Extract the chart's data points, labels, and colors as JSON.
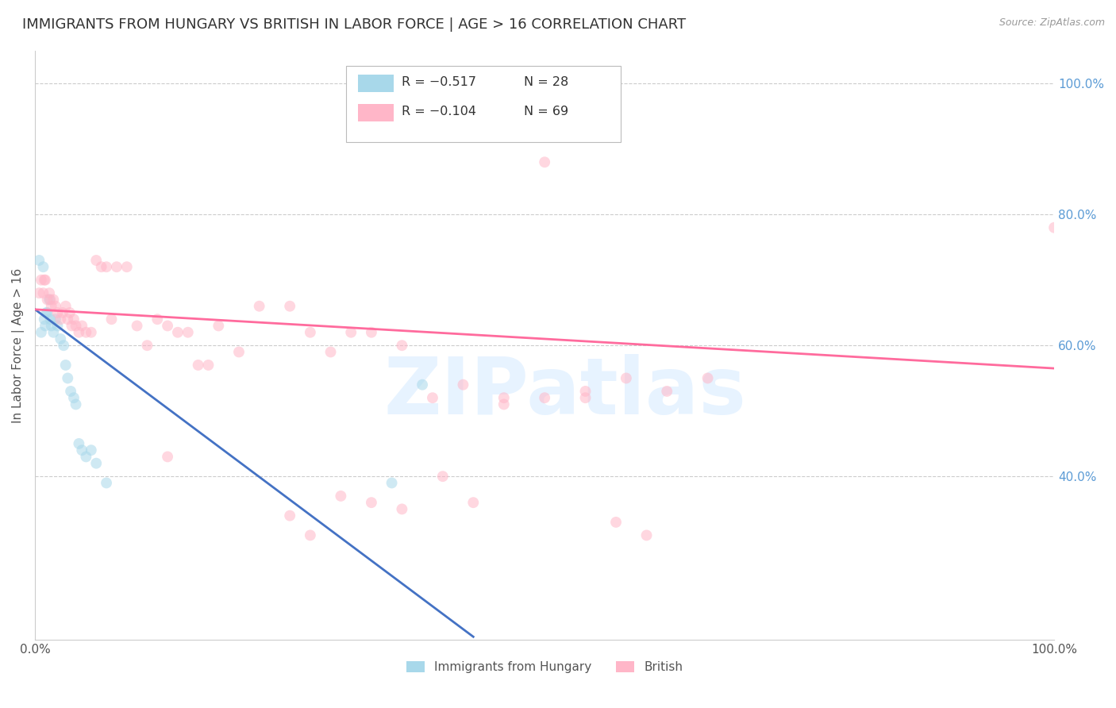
{
  "title": "IMMIGRANTS FROM HUNGARY VS BRITISH IN LABOR FORCE | AGE > 16 CORRELATION CHART",
  "source": "Source: ZipAtlas.com",
  "ylabel": "In Labor Force | Age > 16",
  "xlim": [
    0.0,
    1.0
  ],
  "ylim": [
    0.15,
    1.05
  ],
  "ytick_values": [
    0.4,
    0.6,
    0.8,
    1.0
  ],
  "ytick_labels": [
    "40.0%",
    "60.0%",
    "80.0%",
    "100.0%"
  ],
  "xtick_values": [
    0.0,
    1.0
  ],
  "xtick_labels": [
    "0.0%",
    "100.0%"
  ],
  "watermark": "ZIPatlas",
  "legend_hungary_r": "R = −0.517",
  "legend_hungary_n": "N = 28",
  "legend_british_r": "R = −0.104",
  "legend_british_n": "N = 69",
  "hungary_color": "#A8D8EA",
  "british_color": "#FFB6C8",
  "hungary_line_color": "#4472C4",
  "british_line_color": "#FF6B9D",
  "hungary_scatter_x": [
    0.004,
    0.006,
    0.008,
    0.009,
    0.01,
    0.011,
    0.012,
    0.014,
    0.015,
    0.016,
    0.018,
    0.02,
    0.022,
    0.025,
    0.028,
    0.03,
    0.032,
    0.035,
    0.038,
    0.04,
    0.043,
    0.046,
    0.05,
    0.055,
    0.06,
    0.07,
    0.35,
    0.38
  ],
  "hungary_scatter_y": [
    0.73,
    0.62,
    0.72,
    0.64,
    0.63,
    0.65,
    0.65,
    0.67,
    0.64,
    0.63,
    0.62,
    0.64,
    0.63,
    0.61,
    0.6,
    0.57,
    0.55,
    0.53,
    0.52,
    0.51,
    0.45,
    0.44,
    0.43,
    0.44,
    0.42,
    0.39,
    0.39,
    0.54
  ],
  "british_scatter_x": [
    0.004,
    0.006,
    0.008,
    0.009,
    0.01,
    0.012,
    0.014,
    0.015,
    0.016,
    0.018,
    0.02,
    0.022,
    0.025,
    0.027,
    0.03,
    0.032,
    0.034,
    0.036,
    0.038,
    0.04,
    0.043,
    0.046,
    0.05,
    0.055,
    0.06,
    0.065,
    0.07,
    0.075,
    0.08,
    0.09,
    0.1,
    0.11,
    0.12,
    0.13,
    0.14,
    0.15,
    0.16,
    0.17,
    0.18,
    0.2,
    0.22,
    0.25,
    0.27,
    0.29,
    0.31,
    0.33,
    0.36,
    0.39,
    0.42,
    0.46,
    0.5,
    0.54,
    0.58,
    0.62,
    0.66,
    0.13,
    0.25,
    0.27,
    0.3,
    0.33,
    0.36,
    0.4,
    0.43,
    0.46,
    0.5,
    0.54,
    0.57,
    0.6,
    1.0
  ],
  "british_scatter_y": [
    0.68,
    0.7,
    0.68,
    0.7,
    0.7,
    0.67,
    0.68,
    0.67,
    0.66,
    0.67,
    0.66,
    0.65,
    0.64,
    0.65,
    0.66,
    0.64,
    0.65,
    0.63,
    0.64,
    0.63,
    0.62,
    0.63,
    0.62,
    0.62,
    0.73,
    0.72,
    0.72,
    0.64,
    0.72,
    0.72,
    0.63,
    0.6,
    0.64,
    0.63,
    0.62,
    0.62,
    0.57,
    0.57,
    0.63,
    0.59,
    0.66,
    0.66,
    0.62,
    0.59,
    0.62,
    0.62,
    0.6,
    0.52,
    0.54,
    0.51,
    0.52,
    0.53,
    0.55,
    0.53,
    0.55,
    0.43,
    0.34,
    0.31,
    0.37,
    0.36,
    0.35,
    0.4,
    0.36,
    0.52,
    0.88,
    0.52,
    0.33,
    0.31,
    0.78
  ],
  "hungary_trendline_x": [
    0.0,
    0.43
  ],
  "hungary_trendline_y": [
    0.655,
    0.155
  ],
  "british_trendline_x": [
    0.0,
    1.0
  ],
  "british_trendline_y": [
    0.655,
    0.565
  ],
  "background_color": "#ffffff",
  "grid_color": "#cccccc",
  "title_fontsize": 13,
  "axis_label_fontsize": 11,
  "tick_fontsize": 11,
  "scatter_size": 100,
  "scatter_alpha": 0.55,
  "title_color": "#333333",
  "source_color": "#999999",
  "right_tick_color": "#5B9BD5",
  "watermark_color": "#DDEEFF",
  "watermark_alpha": 0.7,
  "watermark_fontsize": 72
}
